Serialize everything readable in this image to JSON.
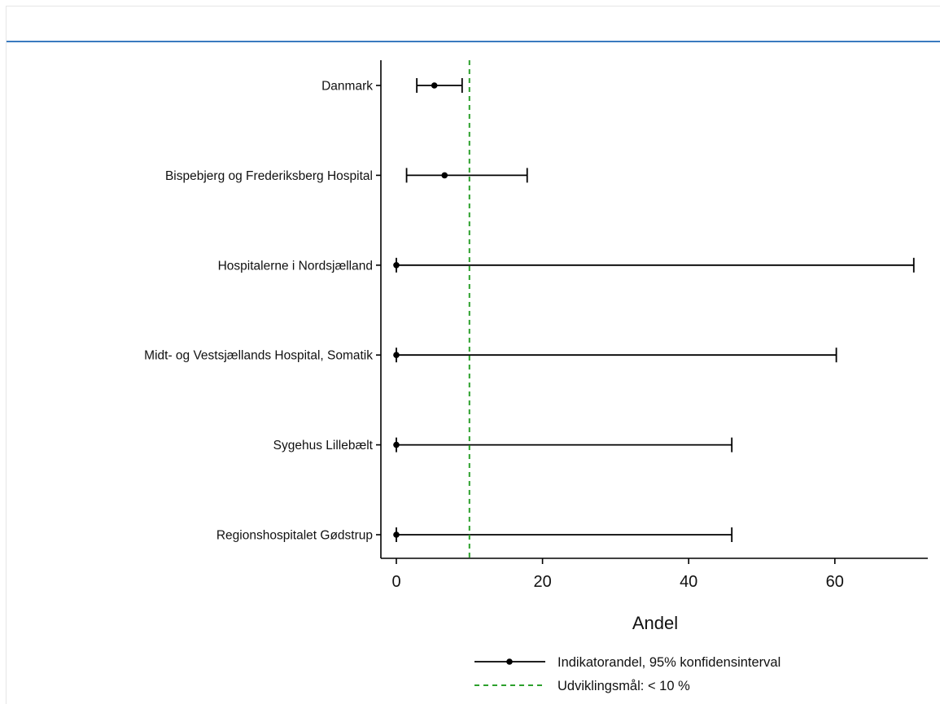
{
  "chart_data": {
    "type": "errorbar",
    "xlabel": "Andel",
    "xlim": [
      -2,
      72
    ],
    "xticks": [
      0,
      20,
      40,
      60
    ],
    "xtick_labels": [
      "0",
      "20",
      "40",
      "60"
    ],
    "grid": false,
    "categories": [
      "Danmark",
      "Bispebjerg og Frederiksberg Hospital",
      "Hospitalerne i Nordsjælland",
      "Midt- og Vestsjællands Hospital, Somatik",
      "Sygehus Lillebælt",
      "Regionshospitalet Gødstrup"
    ],
    "series": [
      {
        "name": "Indikatorandel, 95% konfidensinterval",
        "values": [
          5.2,
          6.6,
          0,
          0,
          0,
          0
        ],
        "lower": [
          2.8,
          1.4,
          0,
          0,
          0,
          0
        ],
        "upper": [
          9.0,
          17.9,
          70.8,
          60.2,
          45.9,
          45.9
        ]
      }
    ],
    "reference_line": {
      "name": "Udviklingsmål: < 10 %",
      "value": 10,
      "style": "dashed",
      "color": "#2ca02c"
    },
    "legend_placement": "bottom",
    "colors": {
      "series": "#000000",
      "axis": "#000000",
      "top_rule": "#3a7abf"
    }
  }
}
